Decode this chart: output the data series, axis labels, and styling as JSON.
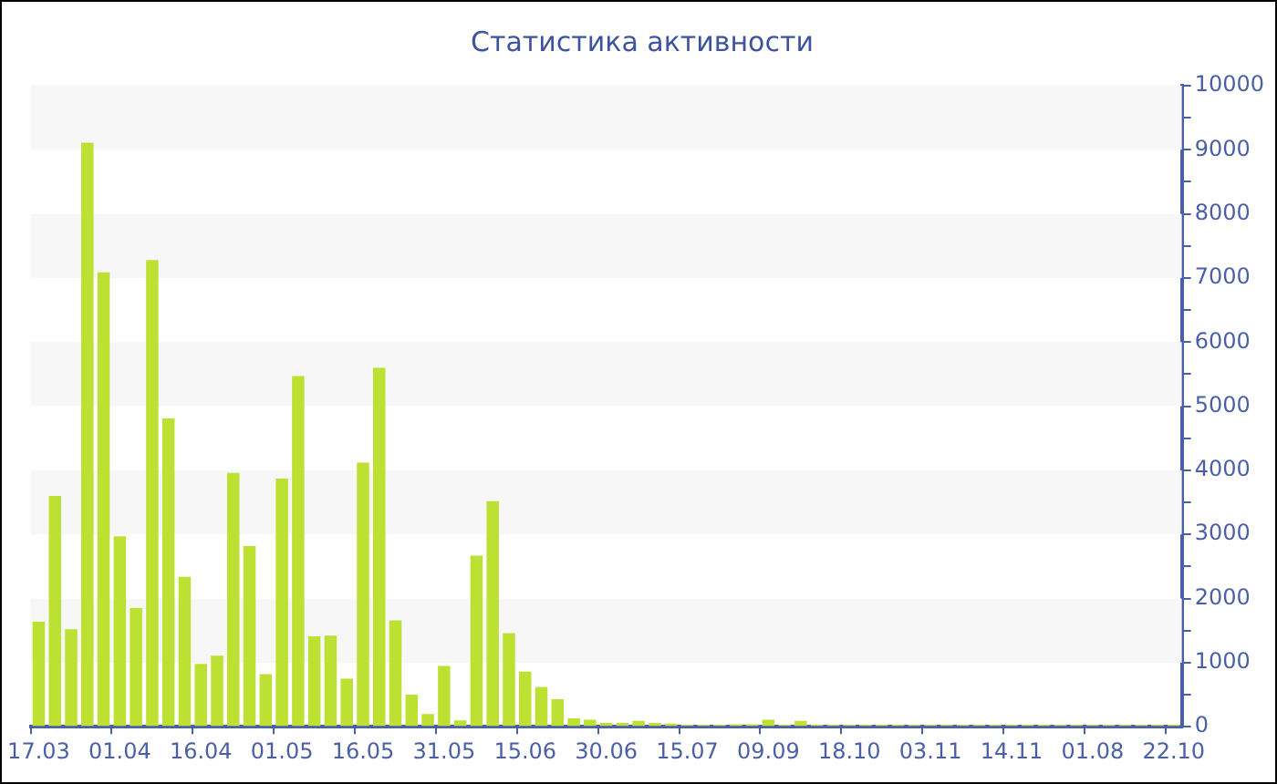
{
  "chart_data": {
    "type": "bar",
    "title": "Статистика активности",
    "categories": [
      "17.03",
      null,
      null,
      null,
      null,
      "01.04",
      null,
      null,
      null,
      null,
      "16.04",
      null,
      null,
      null,
      null,
      "01.05",
      null,
      null,
      null,
      null,
      "16.05",
      null,
      null,
      null,
      null,
      "31.05",
      null,
      null,
      null,
      null,
      "15.06",
      null,
      null,
      null,
      null,
      "30.06",
      null,
      null,
      null,
      null,
      "15.07",
      null,
      null,
      null,
      null,
      "09.09",
      null,
      null,
      null,
      null,
      "18.10",
      null,
      null,
      null,
      null,
      "03.11",
      null,
      null,
      null,
      null,
      "14.11",
      null,
      null,
      null,
      null,
      "01.08",
      null,
      null,
      null,
      null,
      "22.10"
    ],
    "values": [
      1640,
      3600,
      1520,
      9110,
      7090,
      2970,
      1850,
      7280,
      4810,
      2340,
      980,
      1110,
      3960,
      2820,
      820,
      3870,
      5470,
      1410,
      1420,
      750,
      4120,
      5600,
      1660,
      500,
      200,
      950,
      100,
      2670,
      3520,
      1460,
      860,
      620,
      430,
      130,
      110,
      60,
      60,
      90,
      60,
      50,
      30,
      30,
      30,
      40,
      40,
      110,
      30,
      90,
      30,
      30,
      30,
      30,
      30,
      30,
      30,
      30,
      30,
      30,
      30,
      30,
      30,
      30,
      30,
      30,
      30,
      30,
      30,
      30,
      30,
      30,
      30
    ],
    "color": "#bde132",
    "ylim": [
      0,
      10000
    ],
    "yticks": [
      0,
      {
        "value": 500,
        "label": null
      },
      1000,
      {
        "value": 1500,
        "label": null
      },
      2000,
      {
        "value": 2500,
        "label": null
      },
      3000,
      {
        "value": 3500,
        "label": null
      },
      4000,
      {
        "value": 4500,
        "label": null
      },
      5000,
      {
        "value": 5500,
        "label": null
      },
      6000,
      {
        "value": 6500,
        "label": null
      },
      7000,
      {
        "value": 7500,
        "label": null
      },
      8000,
      {
        "value": 8500,
        "label": null
      },
      9000,
      {
        "value": 9500,
        "label": null
      },
      10000
    ],
    "legend": false
  }
}
